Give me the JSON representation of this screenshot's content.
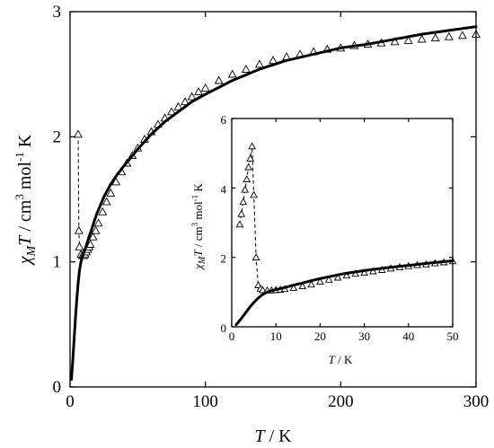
{
  "chart_data": [
    {
      "type": "scatter",
      "panel": "main",
      "xlabel_var": "T",
      "xlabel_unit": " / K",
      "ylabel_var": "χ",
      "ylabel_sub": "M",
      "ylabel_var2": "T",
      "ylabel_unit": " / cm",
      "ylabel_sup3": "3",
      "ylabel_mol": " mol",
      "ylabel_supm1": "-1",
      "ylabel_k": " K",
      "xlim": [
        0,
        300
      ],
      "ylim": [
        0,
        3
      ],
      "xticks": [
        0,
        100,
        200,
        300
      ],
      "xtick_labels": [
        "0",
        "100",
        "200",
        "300"
      ],
      "yticks": [
        0,
        1,
        2,
        3
      ],
      "ytick_labels": [
        "0",
        "1",
        "2",
        "3"
      ],
      "grid": false,
      "series": [
        {
          "style": "open-triangle-markers-dashed",
          "x": [
            6,
            6.5,
            7,
            8,
            9,
            10,
            11,
            12,
            13,
            14,
            15,
            17,
            19,
            21,
            24,
            27,
            30,
            34,
            38,
            42,
            46,
            50,
            55,
            60,
            65,
            70,
            75,
            80,
            85,
            90,
            95,
            100,
            110,
            120,
            130,
            140,
            150,
            160,
            170,
            180,
            190,
            200,
            210,
            220,
            230,
            240,
            250,
            260,
            270,
            280,
            290,
            300
          ],
          "y": [
            2.02,
            1.25,
            1.12,
            1.06,
            1.05,
            1.05,
            1.06,
            1.08,
            1.1,
            1.12,
            1.14,
            1.2,
            1.25,
            1.31,
            1.4,
            1.48,
            1.55,
            1.64,
            1.72,
            1.79,
            1.85,
            1.91,
            1.98,
            2.04,
            2.1,
            2.15,
            2.2,
            2.24,
            2.28,
            2.32,
            2.36,
            2.39,
            2.45,
            2.5,
            2.54,
            2.58,
            2.61,
            2.64,
            2.66,
            2.68,
            2.7,
            2.71,
            2.73,
            2.74,
            2.75,
            2.76,
            2.77,
            2.78,
            2.79,
            2.8,
            2.81,
            2.82
          ]
        },
        {
          "style": "solid-fit-line",
          "x": [
            1,
            2,
            3,
            4,
            5,
            6,
            7,
            8,
            9,
            10,
            12,
            14,
            16,
            18,
            20,
            25,
            30,
            35,
            40,
            50,
            60,
            70,
            80,
            90,
            100,
            120,
            140,
            160,
            180,
            200,
            220,
            240,
            260,
            280,
            300
          ],
          "y": [
            0.06,
            0.21,
            0.38,
            0.55,
            0.7,
            0.83,
            0.93,
            1.0,
            1.04,
            1.07,
            1.13,
            1.2,
            1.26,
            1.33,
            1.39,
            1.52,
            1.62,
            1.7,
            1.77,
            1.9,
            2.02,
            2.12,
            2.2,
            2.28,
            2.34,
            2.45,
            2.54,
            2.61,
            2.66,
            2.71,
            2.74,
            2.78,
            2.82,
            2.85,
            2.88
          ]
        }
      ]
    },
    {
      "type": "scatter",
      "panel": "inset",
      "xlabel_var": "T",
      "xlabel_unit": " / K",
      "ylabel_var": "χ",
      "ylabel_sub": "M",
      "ylabel_var2": "T",
      "ylabel_unit": " / cm",
      "ylabel_sup3": "3",
      "ylabel_mol": " mol",
      "ylabel_supm1": "-1",
      "ylabel_k": " K",
      "xlim": [
        0,
        50
      ],
      "ylim": [
        0,
        6
      ],
      "xticks": [
        0,
        10,
        20,
        30,
        40,
        50
      ],
      "xtick_labels": [
        "0",
        "10",
        "20",
        "30",
        "40",
        "50"
      ],
      "yticks": [
        0,
        2,
        4,
        6
      ],
      "ytick_labels": [
        "0",
        "2",
        "4",
        "6"
      ],
      "grid": false,
      "series": [
        {
          "style": "open-triangle-markers-dashed",
          "x": [
            1.8,
            2.2,
            2.6,
            3.0,
            3.4,
            3.8,
            4.2,
            4.6,
            5.0,
            5.5,
            6.0,
            6.5,
            7.0,
            8.0,
            9.0,
            10.0,
            11.0,
            12.0,
            14.0,
            16.0,
            18.0,
            20.0,
            22.0,
            24.0,
            26.0,
            28.0,
            30.0,
            32.0,
            34.0,
            36.0,
            38.0,
            40.0,
            42.0,
            44.0,
            46.0,
            48.0,
            50.0
          ],
          "y": [
            2.95,
            3.25,
            3.6,
            3.95,
            4.25,
            4.6,
            4.85,
            5.2,
            3.8,
            2.0,
            1.2,
            1.1,
            1.06,
            1.05,
            1.05,
            1.06,
            1.07,
            1.09,
            1.12,
            1.17,
            1.22,
            1.3,
            1.36,
            1.42,
            1.48,
            1.53,
            1.56,
            1.6,
            1.64,
            1.68,
            1.72,
            1.75,
            1.78,
            1.8,
            1.83,
            1.86,
            1.89
          ]
        },
        {
          "style": "solid-fit-line",
          "x": [
            1,
            2,
            3,
            4,
            5,
            6,
            7,
            8,
            9,
            10,
            12,
            14,
            16,
            18,
            20,
            25,
            30,
            35,
            40,
            45,
            50
          ],
          "y": [
            0.06,
            0.21,
            0.38,
            0.55,
            0.7,
            0.83,
            0.93,
            1.0,
            1.04,
            1.07,
            1.13,
            1.2,
            1.26,
            1.33,
            1.39,
            1.52,
            1.62,
            1.7,
            1.77,
            1.84,
            1.9
          ]
        }
      ]
    }
  ]
}
